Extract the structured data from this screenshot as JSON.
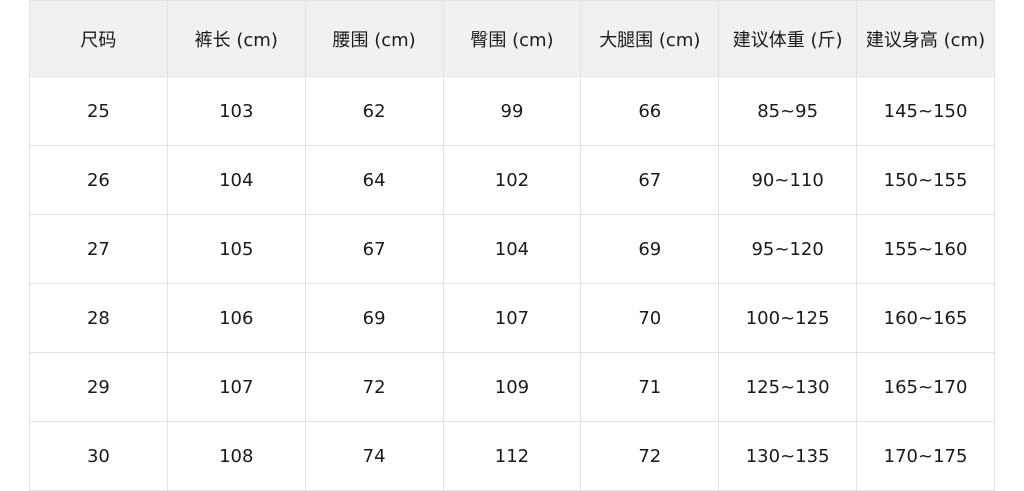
{
  "table": {
    "headers": [
      "尺码",
      "裤长 (cm)",
      "腰围 (cm)",
      "臀围 (cm)",
      "大腿围 (cm)",
      "建议体重 (斤)",
      "建议身高 (cm)"
    ],
    "rows": [
      [
        "25",
        "103",
        "62",
        "99",
        "66",
        "85~95",
        "145~150"
      ],
      [
        "26",
        "104",
        "64",
        "102",
        "67",
        "90~110",
        "150~155"
      ],
      [
        "27",
        "105",
        "67",
        "104",
        "69",
        "95~120",
        "155~160"
      ],
      [
        "28",
        "106",
        "69",
        "107",
        "70",
        "100~125",
        "160~165"
      ],
      [
        "29",
        "107",
        "72",
        "109",
        "71",
        "125~130",
        "165~170"
      ],
      [
        "30",
        "108",
        "74",
        "112",
        "72",
        "130~135",
        "170~175"
      ]
    ]
  },
  "colors": {
    "header_bg": "#f1f1f1",
    "border": "#e2e2e2",
    "text": "#1a1a1a"
  }
}
